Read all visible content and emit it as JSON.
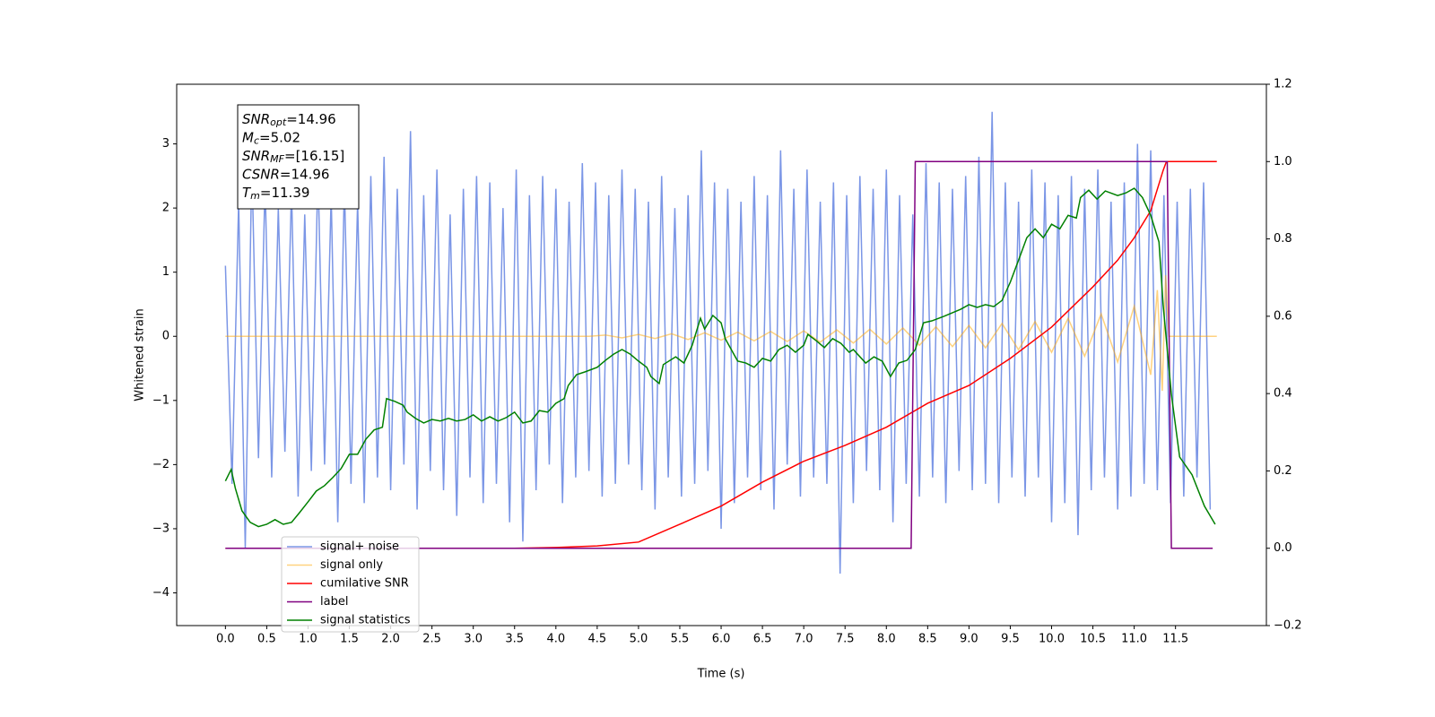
{
  "chart_data": {
    "type": "line",
    "xlabel": "Time (s)",
    "ylabel": "Whitened strain",
    "xlim": [
      -0.59,
      12.6
    ],
    "ylim": [
      -4.51,
      3.93
    ],
    "y2lim": [
      -0.2,
      1.2
    ],
    "xticks": [
      {
        "value": 0,
        "label": "0.0"
      },
      0.5,
      {
        "value": 1,
        "label": "1.0"
      },
      1.5,
      {
        "value": 2,
        "label": "2.0"
      },
      2.5,
      {
        "value": 3,
        "label": "3.0"
      },
      3.5,
      {
        "value": 4,
        "label": "4.0"
      },
      4.5,
      {
        "value": 5,
        "label": "5.0"
      },
      5.5,
      {
        "value": 6,
        "label": "6.0"
      },
      6.5,
      {
        "value": 7,
        "label": "7.0"
      },
      7.5,
      {
        "value": 8,
        "label": "8.0"
      },
      8.5,
      {
        "value": 9,
        "label": "9.0"
      },
      9.5,
      {
        "value": 10,
        "label": "10.0"
      },
      10.5,
      {
        "value": 11,
        "label": "11.0"
      },
      11.5
    ],
    "yticks": [
      {
        "value": -4,
        "label": "−4"
      },
      {
        "value": -3,
        "label": "−3"
      },
      {
        "value": -2,
        "label": "−2"
      },
      {
        "value": -1,
        "label": "−1"
      },
      0,
      1,
      2,
      3
    ],
    "y2ticks": [
      {
        "value": -0.2,
        "label": "−0.2"
      },
      {
        "value": 0,
        "label": "0.0"
      },
      0.2,
      0.4,
      0.6,
      0.8,
      {
        "value": 1,
        "label": "1.0"
      },
      1.2
    ],
    "legend": "lower left",
    "annotations": [
      {
        "symbol": "SNR",
        "sub": "opt",
        "text": "=14.96"
      },
      {
        "symbol": "M",
        "sub": "c",
        "text": "=5.02"
      },
      {
        "symbol": "SNR",
        "sub": "MF",
        "text": "=[16.15]"
      },
      {
        "symbol": "CSNR",
        "sub": null,
        "text": "=14.96"
      },
      {
        "symbol": "T",
        "sub": "m",
        "text": "=11.39"
      }
    ],
    "series": [
      {
        "name": "signal+ noise",
        "color": "#7b96e6",
        "axis": "y",
        "x": [
          0,
          0.08,
          0.16,
          0.24,
          0.32,
          0.4,
          0.48,
          0.56,
          0.64,
          0.72,
          0.8,
          0.88,
          0.96,
          1.04,
          1.12,
          1.2,
          1.28,
          1.36,
          1.44,
          1.52,
          1.6,
          1.68,
          1.76,
          1.84,
          1.92,
          2,
          2.08,
          2.16,
          2.24,
          2.32,
          2.4,
          2.48,
          2.56,
          2.64,
          2.72,
          2.8,
          2.88,
          2.96,
          3.04,
          3.12,
          3.2,
          3.28,
          3.36,
          3.44,
          3.52,
          3.6,
          3.68,
          3.76,
          3.84,
          3.92,
          4,
          4.08,
          4.16,
          4.24,
          4.32,
          4.4,
          4.48,
          4.56,
          4.64,
          4.72,
          4.8,
          4.88,
          4.96,
          5.04,
          5.12,
          5.2,
          5.28,
          5.36,
          5.44,
          5.52,
          5.6,
          5.68,
          5.76,
          5.84,
          5.92,
          6,
          6.08,
          6.16,
          6.24,
          6.32,
          6.4,
          6.48,
          6.56,
          6.64,
          6.72,
          6.8,
          6.88,
          6.96,
          7.04,
          7.12,
          7.2,
          7.28,
          7.36,
          7.44,
          7.52,
          7.6,
          7.68,
          7.76,
          7.84,
          7.92,
          8,
          8.08,
          8.16,
          8.24,
          8.32,
          8.4,
          8.48,
          8.56,
          8.64,
          8.72,
          8.8,
          8.88,
          8.96,
          9.04,
          9.12,
          9.2,
          9.28,
          9.36,
          9.44,
          9.52,
          9.6,
          9.68,
          9.76,
          9.84,
          9.92,
          10,
          10.08,
          10.16,
          10.24,
          10.32,
          10.4,
          10.48,
          10.56,
          10.64,
          10.72,
          10.8,
          10.88,
          10.96,
          11.04,
          11.12,
          11.2,
          11.28,
          11.36,
          11.44,
          11.52,
          11.6,
          11.68,
          11.76,
          11.84,
          11.92
        ],
        "values": [
          1.1,
          -2.3,
          2.1,
          -3.3,
          2.7,
          -1.9,
          2.4,
          -2.2,
          2.0,
          -1.8,
          2.3,
          -2.5,
          1.9,
          -2.1,
          2.6,
          -2.0,
          2.2,
          -2.9,
          2.4,
          -2.3,
          2.1,
          -2.6,
          2.5,
          -2.2,
          2.8,
          -2.4,
          2.3,
          -2.0,
          3.2,
          -2.7,
          2.2,
          -2.1,
          2.6,
          -2.4,
          1.9,
          -2.8,
          2.3,
          -2.2,
          2.5,
          -2.6,
          2.4,
          -2.3,
          2.0,
          -2.9,
          2.6,
          -3.2,
          2.2,
          -2.4,
          2.5,
          -2.0,
          2.3,
          -2.6,
          2.1,
          -2.2,
          2.7,
          -2.1,
          2.4,
          -2.5,
          2.2,
          -2.3,
          2.6,
          -2.0,
          2.3,
          -2.4,
          2.1,
          -2.7,
          2.5,
          -2.2,
          2.0,
          -2.5,
          2.2,
          -2.3,
          2.9,
          -2.1,
          2.4,
          -3.0,
          2.3,
          -2.6,
          2.1,
          -2.2,
          2.5,
          -2.4,
          2.2,
          -2.7,
          2.9,
          -2.0,
          2.3,
          -2.5,
          2.6,
          -2.2,
          2.1,
          -2.3,
          2.4,
          -3.7,
          2.2,
          -2.6,
          2.5,
          -2.1,
          2.3,
          -2.4,
          2.6,
          -2.9,
          2.2,
          -2.3,
          1.9,
          -2.5,
          2.7,
          -2.2,
          2.4,
          -2.6,
          2.3,
          -2.1,
          2.5,
          -2.4,
          2.8,
          -2.3,
          3.5,
          -2.6,
          2.4,
          -2.2,
          2.1,
          -2.5,
          2.6,
          -2.2,
          2.4,
          -2.9,
          2.2,
          -2.6,
          2.5,
          -3.1,
          2.3,
          -2.4,
          2.6,
          -2.2,
          2.1,
          -2.7,
          2.4,
          -2.5,
          3.0,
          -2.3,
          2.9,
          -2.4,
          2.2,
          -2.6,
          2.1,
          -2.5,
          2.3,
          -2.2,
          2.4,
          -2.7
        ]
      },
      {
        "name": "signal only",
        "color": "#ffa500",
        "axis": "y",
        "x": [
          0,
          4.4,
          4.6,
          4.8,
          5.0,
          5.2,
          5.4,
          5.6,
          5.8,
          6.0,
          6.2,
          6.4,
          6.6,
          6.8,
          7.0,
          7.2,
          7.4,
          7.6,
          7.8,
          8.0,
          8.2,
          8.4,
          8.6,
          8.8,
          9.0,
          9.2,
          9.4,
          9.6,
          9.8,
          10.0,
          10.2,
          10.4,
          10.6,
          10.8,
          11.0,
          11.2,
          11.28,
          11.34,
          11.38,
          11.42,
          12.0
        ],
        "values": [
          0,
          0,
          0.02,
          -0.025,
          0.03,
          -0.035,
          0.04,
          -0.05,
          0.055,
          -0.06,
          0.065,
          -0.07,
          0.075,
          -0.08,
          0.085,
          -0.09,
          0.1,
          -0.105,
          0.11,
          -0.12,
          0.13,
          -0.14,
          0.15,
          -0.16,
          0.17,
          -0.18,
          0.2,
          -0.21,
          0.23,
          -0.25,
          0.28,
          -0.31,
          0.35,
          -0.4,
          0.47,
          -0.6,
          0.72,
          -0.85,
          0.95,
          0,
          0
        ]
      },
      {
        "name": "cumilative SNR",
        "color": "#ff0000",
        "axis": "y2",
        "x": [
          0,
          3.5,
          4.0,
          4.5,
          5.0,
          5.5,
          6.0,
          6.5,
          7.0,
          7.5,
          8.0,
          8.5,
          9.0,
          9.5,
          10.0,
          10.5,
          10.8,
          11.0,
          11.2,
          11.35,
          11.39,
          12.0
        ],
        "values": [
          0,
          0,
          0.002,
          0.006,
          0.016,
          0.062,
          0.109,
          0.171,
          0.225,
          0.266,
          0.313,
          0.375,
          0.421,
          0.491,
          0.572,
          0.676,
          0.745,
          0.803,
          0.873,
          0.977,
          1.0,
          1.0
        ]
      },
      {
        "name": "label",
        "color": "#800080",
        "axis": "y2",
        "x": [
          0,
          8.3,
          8.35,
          11.4,
          11.45,
          11.95
        ],
        "values": [
          0,
          0,
          1,
          1,
          0,
          0
        ]
      },
      {
        "name": "signal statistics",
        "color": "#008000",
        "axis": "y2",
        "x": [
          0,
          0.07,
          0.12,
          0.2,
          0.3,
          0.4,
          0.5,
          0.6,
          0.7,
          0.8,
          0.9,
          1.0,
          1.1,
          1.2,
          1.3,
          1.4,
          1.5,
          1.6,
          1.7,
          1.8,
          1.9,
          1.95,
          2.05,
          2.15,
          2.2,
          2.3,
          2.4,
          2.5,
          2.6,
          2.7,
          2.8,
          2.9,
          3.0,
          3.1,
          3.2,
          3.3,
          3.4,
          3.5,
          3.6,
          3.7,
          3.8,
          3.9,
          4.0,
          4.1,
          4.15,
          4.25,
          4.35,
          4.5,
          4.6,
          4.7,
          4.8,
          4.9,
          5.0,
          5.1,
          5.15,
          5.25,
          5.3,
          5.45,
          5.55,
          5.65,
          5.75,
          5.8,
          5.9,
          6.0,
          6.05,
          6.2,
          6.3,
          6.4,
          6.5,
          6.6,
          6.7,
          6.8,
          6.9,
          7.0,
          7.05,
          7.15,
          7.25,
          7.35,
          7.45,
          7.55,
          7.6,
          7.75,
          7.85,
          7.95,
          8.05,
          8.15,
          8.25,
          8.35,
          8.45,
          8.55,
          8.7,
          8.9,
          9.0,
          9.1,
          9.2,
          9.3,
          9.4,
          9.5,
          9.6,
          9.7,
          9.8,
          9.9,
          10.0,
          10.1,
          10.2,
          10.3,
          10.35,
          10.45,
          10.55,
          10.65,
          10.8,
          10.9,
          11.0,
          11.1,
          11.2,
          11.3,
          11.35,
          11.45,
          11.55,
          11.7,
          11.85,
          11.98
        ],
        "values": [
          0.174,
          0.204,
          0.155,
          0.097,
          0.067,
          0.056,
          0.062,
          0.074,
          0.062,
          0.067,
          0.093,
          0.12,
          0.148,
          0.162,
          0.183,
          0.206,
          0.243,
          0.243,
          0.282,
          0.306,
          0.313,
          0.387,
          0.38,
          0.37,
          0.352,
          0.336,
          0.324,
          0.333,
          0.329,
          0.336,
          0.329,
          0.333,
          0.345,
          0.329,
          0.34,
          0.329,
          0.338,
          0.352,
          0.324,
          0.329,
          0.356,
          0.352,
          0.375,
          0.387,
          0.421,
          0.449,
          0.456,
          0.468,
          0.486,
          0.502,
          0.514,
          0.502,
          0.484,
          0.468,
          0.444,
          0.426,
          0.475,
          0.495,
          0.479,
          0.525,
          0.595,
          0.567,
          0.602,
          0.583,
          0.542,
          0.484,
          0.479,
          0.468,
          0.491,
          0.484,
          0.514,
          0.525,
          0.507,
          0.525,
          0.553,
          0.537,
          0.519,
          0.542,
          0.53,
          0.507,
          0.514,
          0.479,
          0.495,
          0.484,
          0.444,
          0.479,
          0.486,
          0.514,
          0.583,
          0.588,
          0.6,
          0.618,
          0.63,
          0.623,
          0.63,
          0.625,
          0.641,
          0.688,
          0.745,
          0.803,
          0.826,
          0.803,
          0.838,
          0.826,
          0.861,
          0.854,
          0.907,
          0.926,
          0.903,
          0.924,
          0.912,
          0.919,
          0.931,
          0.907,
          0.861,
          0.792,
          0.63,
          0.398,
          0.236,
          0.19,
          0.109,
          0.062
        ]
      }
    ]
  }
}
